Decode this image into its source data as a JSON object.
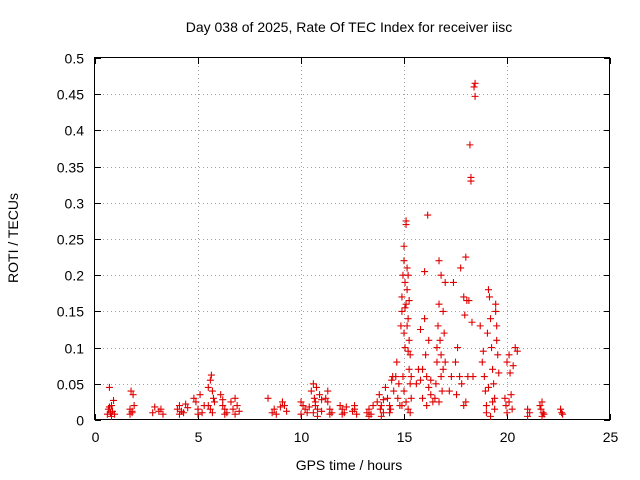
{
  "chart_data": {
    "type": "scatter",
    "title": "Day 038 of 2025, Rate Of TEC Index for receiver iisc",
    "xlabel": "GPS time / hours",
    "ylabel": "ROTI / TECUs",
    "xlim": [
      0,
      25
    ],
    "ylim": [
      0,
      0.5
    ],
    "grid": true,
    "marker": "+",
    "color": "#e00000",
    "x_ticks": [
      0,
      5,
      10,
      15,
      20,
      25
    ],
    "x_tick_labels": [
      "0",
      "5",
      "10",
      "15",
      "20",
      "25"
    ],
    "y_ticks": [
      0,
      0.05,
      0.1,
      0.15,
      0.2,
      0.25,
      0.3,
      0.35,
      0.4,
      0.45,
      0.5
    ],
    "y_tick_labels": [
      "0",
      "0.05",
      "0.1",
      "0.15",
      "0.2",
      "0.25",
      "0.3",
      "0.35",
      "0.4",
      "0.45",
      "0.5"
    ],
    "series": [
      {
        "name": "ROTI",
        "points": [
          [
            0.6,
            0.008
          ],
          [
            0.65,
            0.015
          ],
          [
            0.7,
            0.045
          ],
          [
            0.75,
            0.01
          ],
          [
            0.8,
            0.02
          ],
          [
            0.85,
            0.012
          ],
          [
            0.9,
            0.027
          ],
          [
            0.95,
            0.008
          ],
          [
            0.7,
            0.018
          ],
          [
            0.8,
            0.005
          ],
          [
            1.7,
            0.015
          ],
          [
            1.75,
            0.04
          ],
          [
            1.8,
            0.01
          ],
          [
            1.85,
            0.035
          ],
          [
            1.9,
            0.02
          ],
          [
            1.7,
            0.008
          ],
          [
            1.8,
            0.012
          ],
          [
            2.8,
            0.01
          ],
          [
            2.9,
            0.018
          ],
          [
            3.1,
            0.012
          ],
          [
            3.3,
            0.008
          ],
          [
            3.2,
            0.015
          ],
          [
            4.0,
            0.015
          ],
          [
            4.1,
            0.02
          ],
          [
            4.2,
            0.012
          ],
          [
            4.3,
            0.01
          ],
          [
            4.4,
            0.022
          ],
          [
            4.5,
            0.017
          ],
          [
            4.1,
            0.008
          ],
          [
            4.8,
            0.03
          ],
          [
            4.9,
            0.025
          ],
          [
            5.0,
            0.015
          ],
          [
            5.1,
            0.035
          ],
          [
            5.2,
            0.01
          ],
          [
            5.3,
            0.02
          ],
          [
            5.0,
            0.008
          ],
          [
            5.5,
            0.045
          ],
          [
            5.6,
            0.055
          ],
          [
            5.65,
            0.062
          ],
          [
            5.7,
            0.04
          ],
          [
            5.75,
            0.03
          ],
          [
            5.8,
            0.025
          ],
          [
            5.6,
            0.015
          ],
          [
            5.7,
            0.01
          ],
          [
            5.5,
            0.02
          ],
          [
            6.1,
            0.035
          ],
          [
            6.2,
            0.02
          ],
          [
            6.3,
            0.015
          ],
          [
            6.4,
            0.01
          ],
          [
            6.2,
            0.028
          ],
          [
            6.3,
            0.008
          ],
          [
            6.6,
            0.025
          ],
          [
            6.7,
            0.015
          ],
          [
            6.8,
            0.03
          ],
          [
            6.9,
            0.02
          ],
          [
            7.0,
            0.012
          ],
          [
            6.8,
            0.008
          ],
          [
            8.4,
            0.03
          ],
          [
            8.6,
            0.01
          ],
          [
            8.7,
            0.015
          ],
          [
            8.8,
            0.008
          ],
          [
            9.1,
            0.025
          ],
          [
            9.2,
            0.02
          ],
          [
            9.3,
            0.012
          ],
          [
            9.0,
            0.018
          ],
          [
            10.0,
            0.025
          ],
          [
            10.1,
            0.02
          ],
          [
            10.2,
            0.015
          ],
          [
            10.3,
            0.01
          ],
          [
            10.0,
            0.008
          ],
          [
            10.4,
            0.018
          ],
          [
            10.5,
            0.04
          ],
          [
            10.6,
            0.05
          ],
          [
            10.65,
            0.03
          ],
          [
            10.7,
            0.02
          ],
          [
            10.75,
            0.045
          ],
          [
            10.8,
            0.015
          ],
          [
            10.9,
            0.035
          ],
          [
            11.0,
            0.012
          ],
          [
            10.6,
            0.01
          ],
          [
            10.7,
            0.025
          ],
          [
            10.8,
            0.005
          ],
          [
            11.0,
            0.028
          ],
          [
            11.2,
            0.03
          ],
          [
            11.3,
            0.025
          ],
          [
            11.4,
            0.015
          ],
          [
            11.5,
            0.01
          ],
          [
            11.3,
            0.04
          ],
          [
            11.4,
            0.008
          ],
          [
            11.9,
            0.02
          ],
          [
            12.0,
            0.015
          ],
          [
            12.1,
            0.01
          ],
          [
            12.2,
            0.018
          ],
          [
            12.0,
            0.008
          ],
          [
            12.5,
            0.012
          ],
          [
            12.6,
            0.02
          ],
          [
            12.7,
            0.008
          ],
          [
            12.6,
            0.015
          ],
          [
            13.2,
            0.01
          ],
          [
            13.3,
            0.015
          ],
          [
            13.4,
            0.008
          ],
          [
            13.5,
            0.02
          ],
          [
            13.3,
            0.005
          ],
          [
            13.7,
            0.025
          ],
          [
            13.8,
            0.035
          ],
          [
            13.85,
            0.015
          ],
          [
            13.9,
            0.02
          ],
          [
            14.0,
            0.01
          ],
          [
            14.1,
            0.045
          ],
          [
            14.2,
            0.03
          ],
          [
            14.3,
            0.02
          ],
          [
            14.35,
            0.015
          ],
          [
            14.4,
            0.055
          ],
          [
            14.45,
            0.06
          ],
          [
            14.5,
            0.04
          ],
          [
            14.3,
            0.01
          ],
          [
            14.0,
            0.028
          ],
          [
            13.9,
            0.005
          ],
          [
            14.6,
            0.06
          ],
          [
            14.65,
            0.08
          ],
          [
            14.7,
            0.03
          ],
          [
            14.75,
            0.05
          ],
          [
            14.8,
            0.02
          ],
          [
            14.85,
            0.13
          ],
          [
            14.9,
            0.15
          ],
          [
            14.9,
            0.17
          ],
          [
            14.95,
            0.2
          ],
          [
            15.0,
            0.24
          ],
          [
            15.0,
            0.22
          ],
          [
            15.05,
            0.19
          ],
          [
            15.1,
            0.27
          ],
          [
            15.1,
            0.275
          ],
          [
            15.1,
            0.16
          ],
          [
            15.15,
            0.21
          ],
          [
            15.15,
            0.18
          ],
          [
            15.2,
            0.2
          ],
          [
            15.2,
            0.14
          ],
          [
            15.25,
            0.11
          ],
          [
            15.25,
            0.07
          ],
          [
            15.3,
            0.09
          ],
          [
            15.3,
            0.05
          ],
          [
            15.35,
            0.06
          ],
          [
            15.35,
            0.03
          ],
          [
            15.0,
            0.12
          ],
          [
            15.05,
            0.1
          ],
          [
            14.95,
            0.06
          ],
          [
            15.0,
            0.04
          ],
          [
            15.1,
            0.025
          ],
          [
            15.2,
            0.015
          ],
          [
            15.3,
            0.01
          ],
          [
            14.9,
            0.02
          ],
          [
            15.2,
            0.095
          ],
          [
            15.15,
            0.13
          ],
          [
            15.05,
            0.155
          ],
          [
            15.25,
            0.165
          ],
          [
            15.6,
            0.05
          ],
          [
            15.7,
            0.07
          ],
          [
            15.8,
            0.125
          ],
          [
            15.8,
            0.055
          ],
          [
            15.9,
            0.03
          ],
          [
            15.9,
            0.07
          ],
          [
            16.0,
            0.14
          ],
          [
            16.0,
            0.205
          ],
          [
            16.05,
            0.09
          ],
          [
            16.1,
            0.06
          ],
          [
            16.1,
            0.02
          ],
          [
            16.15,
            0.283
          ],
          [
            16.2,
            0.045
          ],
          [
            16.2,
            0.11
          ],
          [
            16.3,
            0.055
          ],
          [
            16.3,
            0.035
          ],
          [
            16.4,
            0.025
          ],
          [
            16.5,
            0.03
          ],
          [
            16.55,
            0.05
          ],
          [
            16.6,
            0.08
          ],
          [
            16.6,
            0.1
          ],
          [
            16.65,
            0.13
          ],
          [
            16.7,
            0.16
          ],
          [
            16.7,
            0.22
          ],
          [
            16.75,
            0.11
          ],
          [
            16.8,
            0.09
          ],
          [
            16.8,
            0.06
          ],
          [
            16.85,
            0.04
          ],
          [
            16.9,
            0.07
          ],
          [
            16.9,
            0.15
          ],
          [
            16.95,
            0.12
          ],
          [
            17.0,
            0.19
          ],
          [
            16.7,
            0.025
          ],
          [
            16.8,
            0.2
          ],
          [
            17.0,
            0.08
          ],
          [
            17.2,
            0.04
          ],
          [
            17.3,
            0.06
          ],
          [
            17.4,
            0.19
          ],
          [
            17.5,
            0.08
          ],
          [
            17.55,
            0.035
          ],
          [
            17.6,
            0.1
          ],
          [
            17.7,
            0.06
          ],
          [
            17.75,
            0.21
          ],
          [
            17.8,
            0.05
          ],
          [
            17.9,
            0.17
          ],
          [
            17.95,
            0.145
          ],
          [
            18.0,
            0.225
          ],
          [
            18.05,
            0.165
          ],
          [
            18.1,
            0.06
          ],
          [
            18.15,
            0.165
          ],
          [
            18.2,
            0.38
          ],
          [
            18.25,
            0.335
          ],
          [
            18.25,
            0.33
          ],
          [
            18.3,
            0.135
          ],
          [
            18.35,
            0.06
          ],
          [
            18.4,
            0.46
          ],
          [
            18.45,
            0.465
          ],
          [
            18.45,
            0.447
          ],
          [
            17.9,
            0.02
          ],
          [
            18.0,
            0.025
          ],
          [
            18.7,
            0.13
          ],
          [
            18.8,
            0.08
          ],
          [
            18.85,
            0.095
          ],
          [
            18.9,
            0.06
          ],
          [
            18.95,
            0.04
          ],
          [
            19.0,
            0.02
          ],
          [
            19.05,
            0.12
          ],
          [
            19.1,
            0.18
          ],
          [
            19.15,
            0.17
          ],
          [
            19.2,
            0.14
          ],
          [
            19.25,
            0.1
          ],
          [
            19.3,
            0.07
          ],
          [
            19.35,
            0.05
          ],
          [
            19.4,
            0.03
          ],
          [
            19.45,
            0.16
          ],
          [
            19.45,
            0.15
          ],
          [
            19.5,
            0.13
          ],
          [
            19.5,
            0.11
          ],
          [
            19.55,
            0.09
          ],
          [
            19.6,
            0.065
          ],
          [
            19.0,
            0.01
          ],
          [
            19.2,
            0.005
          ],
          [
            19.4,
            0.015
          ],
          [
            19.3,
            0.025
          ],
          [
            19.1,
            0.045
          ],
          [
            19.9,
            0.03
          ],
          [
            19.95,
            0.02
          ],
          [
            20.0,
            0.08
          ],
          [
            20.1,
            0.09
          ],
          [
            20.15,
            0.065
          ],
          [
            20.2,
            0.035
          ],
          [
            20.25,
            0.015
          ],
          [
            20.3,
            0.075
          ],
          [
            20.4,
            0.1
          ],
          [
            20.5,
            0.095
          ],
          [
            20.0,
            0.01
          ],
          [
            20.1,
            0.025
          ],
          [
            21.0,
            0.015
          ],
          [
            21.1,
            0.01
          ],
          [
            21.0,
            0.005
          ],
          [
            21.6,
            0.02
          ],
          [
            21.65,
            0.015
          ],
          [
            21.7,
            0.025
          ],
          [
            21.75,
            0.01
          ],
          [
            21.8,
            0.008
          ],
          [
            21.7,
            0.005
          ],
          [
            22.6,
            0.015
          ],
          [
            22.65,
            0.01
          ],
          [
            22.7,
            0.008
          ]
        ]
      }
    ]
  }
}
